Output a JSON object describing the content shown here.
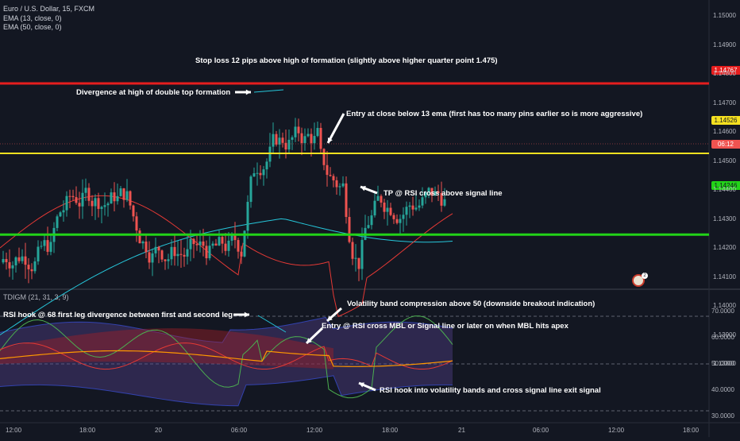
{
  "legend": {
    "symbol": "Euro / U.S. Dollar, 15, FXCM",
    "ema13": "EMA (13, close, 0)",
    "ema50": "EMA (50, close, 0)"
  },
  "indicator_title": "TDIGM (21, 31, 3, 9)",
  "annotations": {
    "stoploss": "Stop loss 12 pips above high of formation (slightly above higher quarter point 1.475)",
    "divergence": "Divergence at high of double top formation",
    "entry": "Entry at close below 13 ema (first has too many pins earlier so is more aggressive)",
    "tp": "TP @ RSI cross above signal line",
    "rsi_hook": "RSI hook @ 68 first leg divergence between first and second leg",
    "volatility": "Volatility band compression above 50 (downside breakout indication)",
    "entry_rsi": "Entry @ RSI cross MBL or Signal line or later on when MBL hits apex",
    "exit": "RSI hook into volatility bands and cross signal line exit signal"
  },
  "price_tags": {
    "stoploss": "1.14767",
    "entry": "1.14526",
    "countdown": "06:12",
    "tp": "1.14246"
  },
  "price_axis": [
    "1.15000",
    "1.14900",
    "1.14800",
    "1.14700",
    "1.14600",
    "1.14500",
    "1.14400",
    "1.14300",
    "1.14200",
    "1.14100",
    "1.14000",
    "1.13900",
    "1.13800"
  ],
  "indicator_axis": [
    "70.0000",
    "60.0000",
    "50.0000",
    "40.0000",
    "30.0000"
  ],
  "time_axis": [
    "12:00",
    "18:00",
    "20",
    "06:00",
    "12:00",
    "18:00",
    "21",
    "06:00",
    "12:00",
    "18:00"
  ],
  "colors": {
    "background": "#131722",
    "up": "#26a69a",
    "down": "#ef5350",
    "stoploss_line": "#e61e1e",
    "entry_line": "#f5e020",
    "tp_line": "#22d318",
    "ema13": "#e53935",
    "ema50": "#26c6da"
  },
  "icons": [
    "arrow-icon",
    "flag-badge-icon"
  ]
}
